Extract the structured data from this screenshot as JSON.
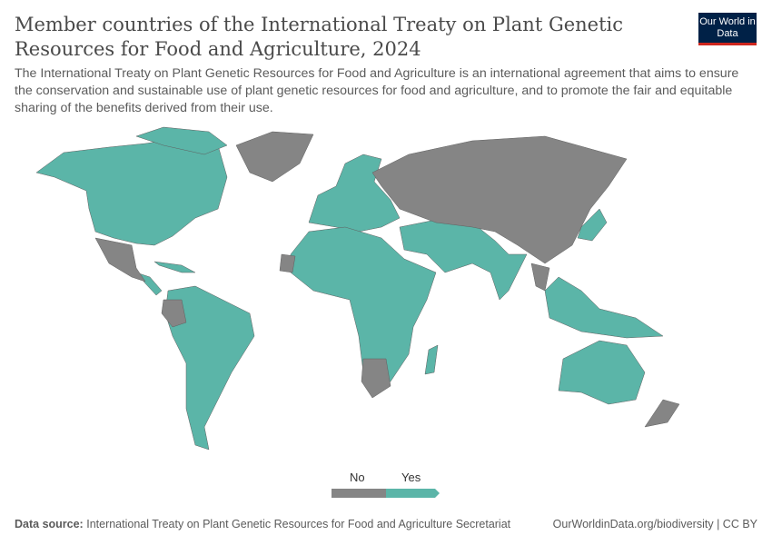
{
  "header": {
    "title": "Member countries of the International Treaty on Plant Genetic Resources for Food and Agriculture, 2024",
    "subtitle": "The International Treaty on Plant Genetic Resources for Food and Agriculture is an international agreement that aims to ensure the conservation and sustainable use of plant genetic resources for food and agriculture, and to promote the fair and equitable sharing of the benefits derived from their use.",
    "logo": "Our World in Data"
  },
  "legend": {
    "items": [
      {
        "label": "No",
        "color": "#858585"
      },
      {
        "label": "Yes",
        "color": "#5bb5a8"
      }
    ]
  },
  "colors": {
    "no": "#858585",
    "yes": "#5bb5a8",
    "border": "#5f5f5f"
  },
  "footer": {
    "source_label": "Data source:",
    "source": "International Treaty on Plant Genetic Resources for Food and Agriculture Secretariat",
    "credit": "OurWorldinData.org/biodiversity | CC BY"
  }
}
